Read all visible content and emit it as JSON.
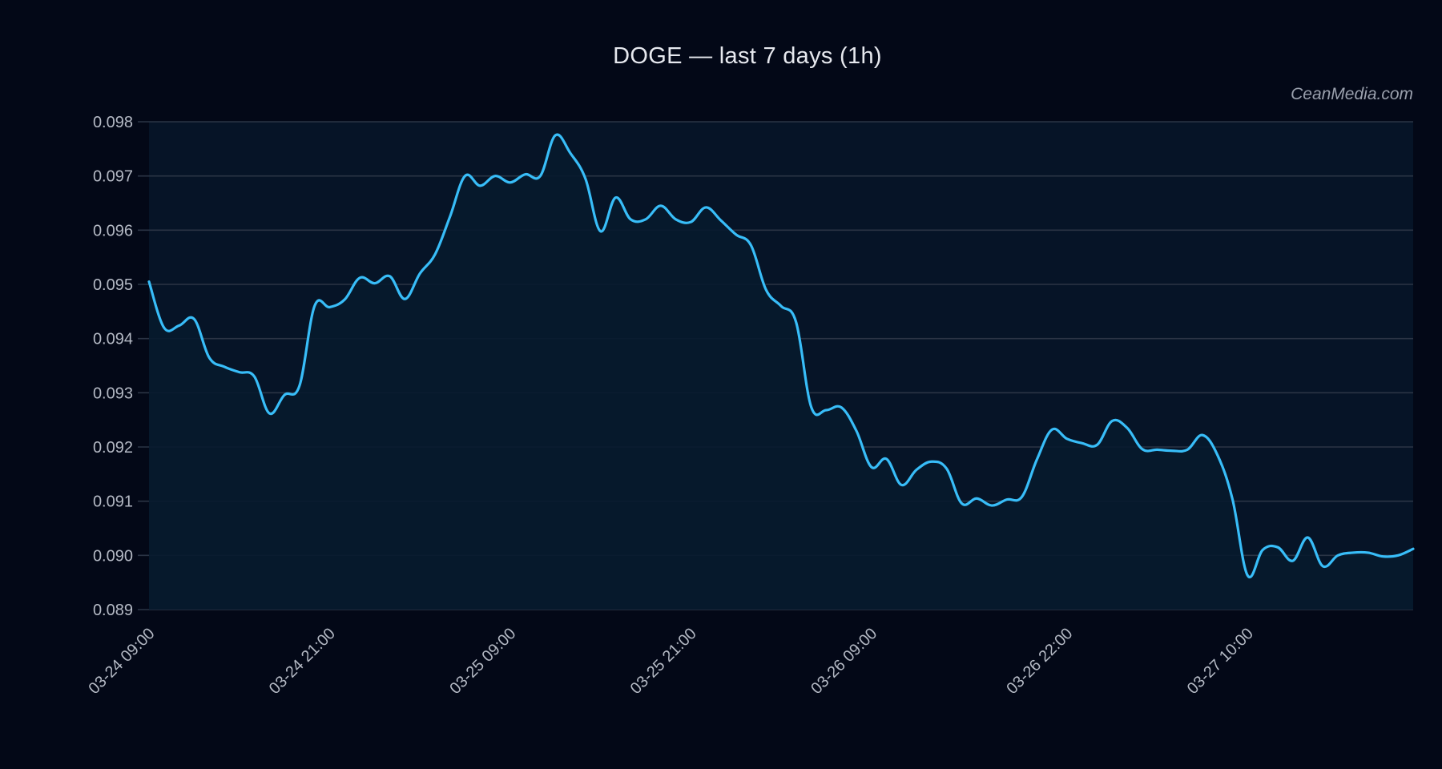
{
  "title": "DOGE — last 7 days (1h)",
  "watermark": "CeanMedia.com",
  "colors": {
    "background": "#030817",
    "plot_fill": "#061427",
    "line": "#38bdf8",
    "grid": "#2b3445",
    "tick_text": "#b4b9c4"
  },
  "chart_data": {
    "type": "area",
    "title": "DOGE — last 7 days (1h)",
    "xlabel": "",
    "ylabel": "",
    "ylim": [
      0.089,
      0.098
    ],
    "grid": true,
    "legend": null,
    "y_ticks": [
      "0.098",
      "0.097",
      "0.096",
      "0.095",
      "0.094",
      "0.093",
      "0.092",
      "0.091",
      "0.090",
      "0.089"
    ],
    "x_ticks": [
      {
        "label": "03-24 09:00",
        "hour": 0
      },
      {
        "label": "03-24 21:00",
        "hour": 12
      },
      {
        "label": "03-25 09:00",
        "hour": 24
      },
      {
        "label": "03-25 21:00",
        "hour": 36
      },
      {
        "label": "03-26 09:00",
        "hour": 48
      },
      {
        "label": "03-26 22:00",
        "hour": 61
      },
      {
        "label": "03-27 10:00",
        "hour": 73
      }
    ],
    "series": [
      {
        "name": "DOGE",
        "values": [
          0.09505,
          0.0942,
          0.09424,
          0.09436,
          0.09365,
          0.09348,
          0.09338,
          0.0933,
          0.09262,
          0.09296,
          0.09313,
          0.0946,
          0.09458,
          0.09472,
          0.09512,
          0.09502,
          0.09515,
          0.09473,
          0.0952,
          0.09555,
          0.09625,
          0.097,
          0.09682,
          0.097,
          0.09688,
          0.09703,
          0.097,
          0.09775,
          0.09742,
          0.09695,
          0.09598,
          0.0966,
          0.0962,
          0.0962,
          0.09645,
          0.0962,
          0.09615,
          0.09642,
          0.09618,
          0.09592,
          0.09572,
          0.0949,
          0.0946,
          0.0943,
          0.09274,
          0.09268,
          0.09273,
          0.0923,
          0.09163,
          0.09178,
          0.0913,
          0.09158,
          0.09173,
          0.0916,
          0.09096,
          0.09105,
          0.09092,
          0.09103,
          0.09108,
          0.09177,
          0.09232,
          0.09215,
          0.09207,
          0.09204,
          0.09248,
          0.09235,
          0.09196,
          0.09195,
          0.09193,
          0.09195,
          0.09222,
          0.09185,
          0.09103,
          0.08963,
          0.0901,
          0.09015,
          0.0899,
          0.09033,
          0.0898,
          0.09,
          0.09005,
          0.09005,
          0.08998,
          0.09,
          0.09012
        ]
      }
    ]
  }
}
